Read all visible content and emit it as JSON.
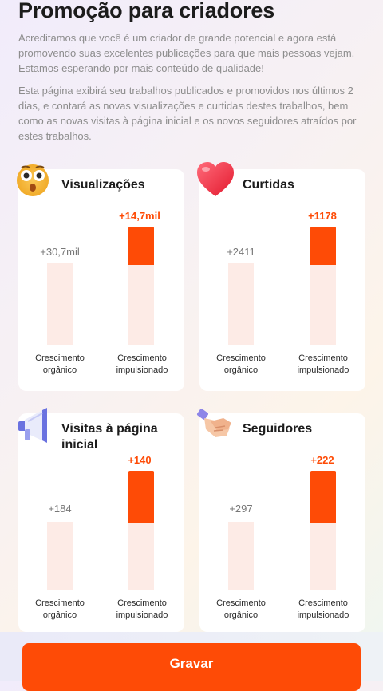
{
  "page": {
    "title": "Promoção para criadores",
    "intro_1": "Acreditamos que você é um criador de grande potencial e agora está promovendo suas excelentes publicações para que mais pessoas vejam. Estamos esperando por mais conteúdo de qualidade!",
    "intro_2": "Esta página exibirá seu trabalhos publicados e promovidos nos últimos 2 dias, e contará as novas visualizações e curtidas destes trabalhos, bem como as novas visitas à página inicial e os novos seguidores atraídos por estes trabalhos."
  },
  "labels": {
    "organic": "Crescimento orgânico",
    "boosted": "Crescimento impulsionado"
  },
  "colors": {
    "accent": "#fe4b06",
    "bar_base": "#fdebe6"
  },
  "cards": [
    {
      "title": "Visualizações",
      "icon": "astonished-face-icon",
      "organic": "+30,7mil",
      "boosted": "+14,7mil"
    },
    {
      "title": "Curtidas",
      "icon": "heart-icon",
      "organic": "+2411",
      "boosted": "+1178"
    },
    {
      "title": "Visitas à página inicial",
      "icon": "megaphone-icon",
      "organic": "+184",
      "boosted": "+140"
    },
    {
      "title": "Seguidores",
      "icon": "handshake-icon",
      "organic": "+297",
      "boosted": "+222"
    }
  ],
  "footer": {
    "button_label": "Gravar"
  }
}
